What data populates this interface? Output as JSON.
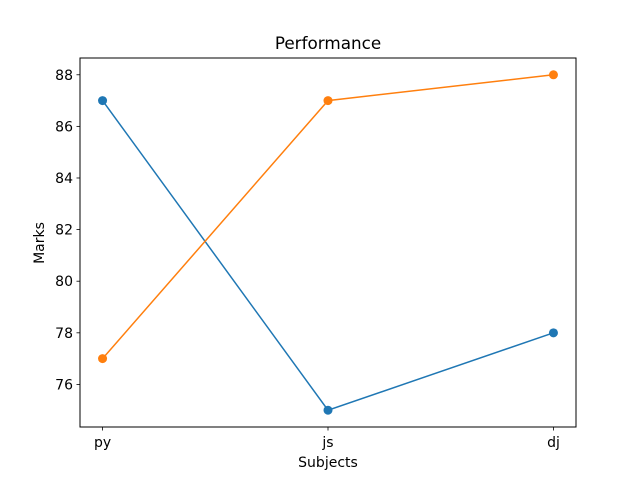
{
  "chart_data": {
    "type": "line",
    "title": "Performance",
    "xlabel": "Subjects",
    "ylabel": "Marks",
    "categories": [
      "py",
      "js",
      "dj"
    ],
    "ylim": [
      74.35,
      88.65
    ],
    "yticks": [
      76,
      78,
      80,
      82,
      84,
      86,
      88
    ],
    "grid": false,
    "series": [
      {
        "values": [
          87,
          75,
          78
        ],
        "color": "#1f77b4",
        "marker": "circle"
      },
      {
        "values": [
          77,
          87,
          88
        ],
        "color": "#ff7f0e",
        "marker": "circle"
      }
    ]
  }
}
